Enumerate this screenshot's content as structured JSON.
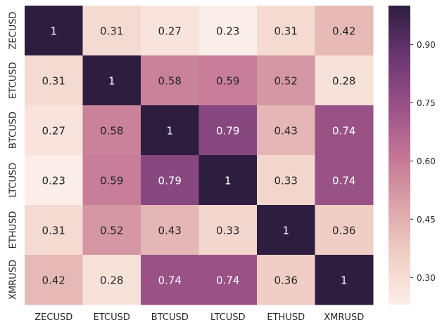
{
  "chart_data": {
    "type": "heatmap",
    "title": "",
    "xlabel": "",
    "ylabel": "",
    "x_categories": [
      "ZECUSD",
      "ETCUSD",
      "BTCUSD",
      "LTCUSD",
      "ETHUSD",
      "XMRUSD"
    ],
    "y_categories": [
      "ZECUSD",
      "ETCUSD",
      "BTCUSD",
      "LTCUSD",
      "ETHUSD",
      "XMRUSD"
    ],
    "values": [
      [
        1,
        0.31,
        0.27,
        0.23,
        0.31,
        0.42
      ],
      [
        0.31,
        1,
        0.58,
        0.59,
        0.52,
        0.28
      ],
      [
        0.27,
        0.58,
        1,
        0.79,
        0.43,
        0.74
      ],
      [
        0.23,
        0.59,
        0.79,
        1,
        0.33,
        0.74
      ],
      [
        0.31,
        0.52,
        0.43,
        0.33,
        1,
        0.36
      ],
      [
        0.42,
        0.28,
        0.74,
        0.74,
        0.36,
        1
      ]
    ],
    "annotations": [
      [
        "1",
        "0.31",
        "0.27",
        "0.23",
        "0.31",
        "0.42"
      ],
      [
        "0.31",
        "1",
        "0.58",
        "0.59",
        "0.52",
        "0.28"
      ],
      [
        "0.27",
        "0.58",
        "1",
        "0.79",
        "0.43",
        "0.74"
      ],
      [
        "0.23",
        "0.59",
        "0.79",
        "1",
        "0.33",
        "0.74"
      ],
      [
        "0.31",
        "0.52",
        "0.43",
        "0.33",
        "1",
        "0.36"
      ],
      [
        "0.42",
        "0.28",
        "0.74",
        "0.74",
        "0.36",
        "1"
      ]
    ],
    "value_range": [
      0.23,
      1
    ],
    "colorbar": {
      "position": "right",
      "ticks": [
        0.3,
        0.45,
        0.6,
        0.75,
        0.9
      ],
      "tick_labels": [
        "0.30",
        "0.45",
        "0.60",
        "0.75",
        "0.90"
      ]
    },
    "colormap": {
      "name": "cubehelix-purple",
      "stops": [
        "#fbeee8",
        "#f0cfc5",
        "#dba3a8",
        "#c47495",
        "#985186",
        "#6a3573",
        "#2d1e3f"
      ]
    },
    "annotation_colors": {
      "dark_text": "#262626",
      "light_text": "#ffffff"
    },
    "grid": false
  }
}
